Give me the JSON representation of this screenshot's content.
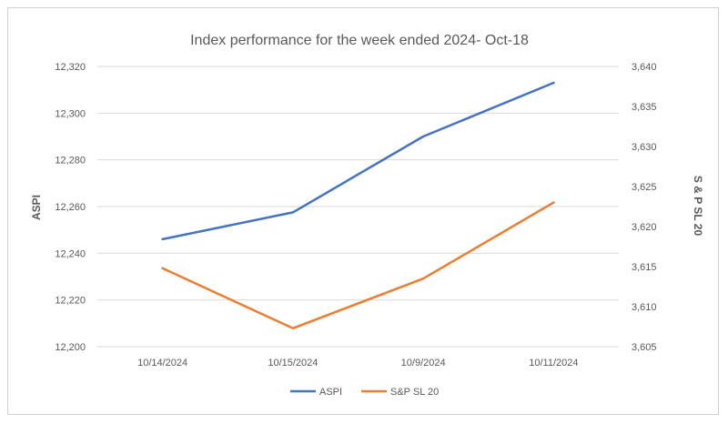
{
  "chart_data": {
    "type": "line",
    "title": "Index performance for the week ended 2024- Oct-18",
    "categories": [
      "10/14/2024",
      "10/15/2024",
      "10/9/2024",
      "10/11/2024"
    ],
    "series": [
      {
        "name": "ASPI",
        "axis": "left",
        "color": "#4472C4",
        "values": [
          12246,
          12257.5,
          12290,
          12313
        ]
      },
      {
        "name": "S&P SL 20",
        "axis": "right",
        "color": "#ED7D31",
        "values": [
          3614.8,
          3607.3,
          3613.5,
          3623
        ]
      }
    ],
    "y_left": {
      "label": "ASPI",
      "min": 12200,
      "max": 12320,
      "step": 20,
      "ticks": [
        "12,200",
        "12,220",
        "12,240",
        "12,260",
        "12,280",
        "12,300",
        "12,320"
      ]
    },
    "y_right": {
      "label": "S & P SL 20",
      "min": 3605,
      "max": 3640,
      "step": 5,
      "ticks": [
        "3,605",
        "3,610",
        "3,615",
        "3,620",
        "3,625",
        "3,630",
        "3,635",
        "3,640"
      ]
    },
    "grid": true,
    "gridline_color": "#d9d9d9",
    "legend_position": "bottom"
  }
}
